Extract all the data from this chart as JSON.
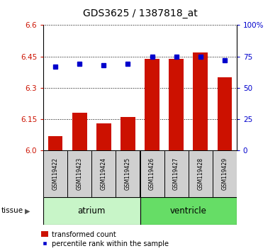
{
  "title": "GDS3625 / 1387818_at",
  "samples": [
    "GSM119422",
    "GSM119423",
    "GSM119424",
    "GSM119425",
    "GSM119426",
    "GSM119427",
    "GSM119428",
    "GSM119429"
  ],
  "transformed_count": [
    6.07,
    6.18,
    6.13,
    6.16,
    6.44,
    6.44,
    6.47,
    6.35
  ],
  "percentile_rank": [
    67,
    69,
    68,
    69,
    75,
    75,
    75,
    72
  ],
  "ylim_left": [
    6.0,
    6.6
  ],
  "ylim_right": [
    0,
    100
  ],
  "yticks_left": [
    6.0,
    6.15,
    6.3,
    6.45,
    6.6
  ],
  "yticks_right": [
    0,
    25,
    50,
    75,
    100
  ],
  "groups": [
    {
      "label": "atrium",
      "start": 0,
      "end": 4,
      "color": "#c8f5c8"
    },
    {
      "label": "ventricle",
      "start": 4,
      "end": 8,
      "color": "#66dd66"
    }
  ],
  "bar_color": "#cc1100",
  "dot_color": "#0000cc",
  "bar_baseline": 6.0,
  "tick_label_color_left": "#cc1100",
  "tick_label_color_right": "#0000cc",
  "tissue_label": "tissue",
  "legend_bar_label": "transformed count",
  "legend_dot_label": "percentile rank within the sample",
  "bar_width": 0.6
}
